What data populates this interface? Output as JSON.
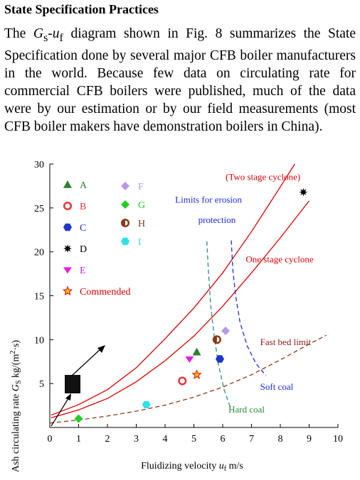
{
  "heading": "State Specification Practices",
  "paragraph": {
    "p1": "The ",
    "gs": "G",
    "gs_sub": "s",
    "dash": "-",
    "uf": "u",
    "uf_sub": "f",
    "p2": " diagram shown in Fig. 8 summarizes the State Specification done by several major CFB boiler manufacturers in the world. Because few data on circulating rate for commercial CFB boilers were published, much of the data were by our estimation or by our field measurements (most CFB boiler makers have demonstration boilers in China)."
  },
  "chart_data": {
    "type": "scatter",
    "xlabel": "Fluidizing velocity u_f m/s",
    "xlabel_parts": {
      "a": "Fluidizing velocity ",
      "b": "u",
      "c": "f",
      "d": " m/s"
    },
    "ylabel": "Ash circulating rate G_S kg/(m²·s)",
    "ylabel_parts": {
      "a": "Ash circulating rate ",
      "b": "G",
      "c": "S",
      "d": " kg/(m",
      "e": "2",
      "f": "·s)"
    },
    "xlim": [
      0,
      10
    ],
    "ylim": [
      0,
      30
    ],
    "xticks": [
      "0",
      "1",
      "2",
      "3",
      "4",
      "5",
      "6",
      "7",
      "8",
      "9",
      "10"
    ],
    "yticks": [
      "5",
      "10",
      "15",
      "20",
      "25",
      "30"
    ],
    "grid": false,
    "legend_position": "top-left",
    "series": [
      {
        "name": "A",
        "marker": "triangle",
        "color": "#2e7d32",
        "points": [
          [
            5.1,
            8.6
          ]
        ]
      },
      {
        "name": "B",
        "marker": "ring",
        "color": "#e53935",
        "points": [
          [
            4.6,
            5.3
          ]
        ]
      },
      {
        "name": "C",
        "marker": "hexagon",
        "color": "#1e35c8",
        "points": [
          [
            5.9,
            7.8
          ]
        ]
      },
      {
        "name": "D",
        "marker": "burst",
        "color": "#000000",
        "points": [
          [
            8.8,
            26.8
          ]
        ]
      },
      {
        "name": "E",
        "marker": "heart",
        "color": "#e020e0",
        "points": [
          [
            4.85,
            7.8
          ]
        ]
      },
      {
        "name": "Commended",
        "marker": "star",
        "color": "#f0c000",
        "points": [
          [
            5.1,
            6.0
          ]
        ]
      },
      {
        "name": "F",
        "marker": "diamond",
        "color": "#b898e8",
        "points": [
          [
            6.1,
            11.0
          ]
        ]
      },
      {
        "name": "G",
        "marker": "diamond",
        "color": "#22cc22",
        "points": [
          [
            1.0,
            1.0
          ]
        ]
      },
      {
        "name": "H",
        "marker": "halfring",
        "color": "#8b3a1a",
        "points": [
          [
            5.8,
            10.0
          ]
        ]
      },
      {
        "name": "I",
        "marker": "hexagon",
        "color": "#33e0e8",
        "points": [
          [
            3.35,
            2.6
          ]
        ]
      }
    ],
    "curves": [
      {
        "label": "(Two stage cyclone)",
        "style": "solid",
        "color": "#dd0000",
        "points": [
          [
            0.05,
            1.4
          ],
          [
            1,
            2.6
          ],
          [
            2,
            4.3
          ],
          [
            3,
            6.8
          ],
          [
            4,
            10.1
          ],
          [
            5,
            13.6
          ],
          [
            6,
            17.6
          ],
          [
            7,
            22.3
          ],
          [
            8,
            27.4
          ],
          [
            8.5,
            30
          ]
        ]
      },
      {
        "label": "One stage cyclone",
        "style": "solid",
        "color": "#dd0000",
        "points": [
          [
            0.05,
            1.1
          ],
          [
            1,
            2.0
          ],
          [
            2,
            3.3
          ],
          [
            3,
            5.2
          ],
          [
            4,
            7.6
          ],
          [
            5,
            10.4
          ],
          [
            6,
            13.8
          ],
          [
            7,
            17.6
          ],
          [
            8,
            21.6
          ],
          [
            9,
            25.8
          ]
        ]
      },
      {
        "label": "Fast bed  limit",
        "style": "dashed",
        "color": "#8b3a1a",
        "points": [
          [
            0,
            0.5
          ],
          [
            1,
            0.85
          ],
          [
            2,
            1.3
          ],
          [
            3,
            1.85
          ],
          [
            4,
            2.55
          ],
          [
            5,
            3.45
          ],
          [
            6,
            4.6
          ],
          [
            7,
            6.0
          ],
          [
            8,
            7.7
          ],
          [
            9,
            9.5
          ],
          [
            9.6,
            10.5
          ]
        ]
      },
      {
        "label": "Hard coal",
        "style": "dashed",
        "color": "#2a8a80",
        "points": [
          [
            5.45,
            21.2
          ],
          [
            5.5,
            18
          ],
          [
            5.58,
            14
          ],
          [
            5.7,
            10.5
          ],
          [
            5.85,
            7.2
          ],
          [
            6.05,
            4.3
          ],
          [
            6.3,
            2.0
          ]
        ]
      },
      {
        "label": "Soft coal",
        "style": "dashed",
        "color": "#1a2aee",
        "points": [
          [
            6.3,
            21.3
          ],
          [
            6.35,
            18
          ],
          [
            6.45,
            15
          ],
          [
            6.6,
            12
          ],
          [
            6.85,
            9.3
          ],
          [
            7.15,
            7.3
          ],
          [
            7.5,
            5.9
          ]
        ]
      }
    ],
    "annotations": {
      "two_stage": "(Two stage cyclone)",
      "one_stage": "One stage cyclone",
      "erosion_1": "Limits for erosion",
      "erosion_2": "protection",
      "fast_bed": "Fast bed  limit",
      "soft_coal": "Soft coal",
      "hard_coal": "Hard coal"
    }
  }
}
